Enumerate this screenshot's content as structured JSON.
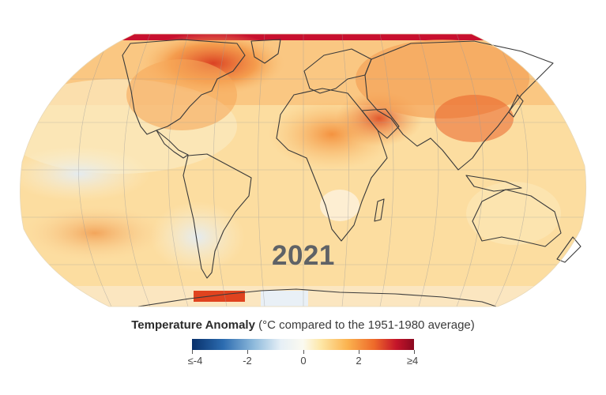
{
  "map": {
    "year": "2021",
    "projection_shape": "robinson-style global map",
    "land_outline_color": "#3a3a3a",
    "background": "#ffffff"
  },
  "legend": {
    "title_bold": "Temperature Anomaly",
    "title_rest": " (°C compared to the 1951-1980 average)",
    "ticks": [
      {
        "label": "≤-4",
        "value": -4
      },
      {
        "label": "-2",
        "value": -2
      },
      {
        "label": "0",
        "value": 0
      },
      {
        "label": "2",
        "value": 2
      },
      {
        "label": "≥4",
        "value": 4
      }
    ],
    "range": [
      -4,
      4
    ],
    "colors": [
      "#08306b",
      "#2c6cb0",
      "#8fbbdc",
      "#e6eff6",
      "#fbfaf0",
      "#fde7a7",
      "#fbb34f",
      "#ee6a2a",
      "#c5152a",
      "#8a0820"
    ]
  }
}
